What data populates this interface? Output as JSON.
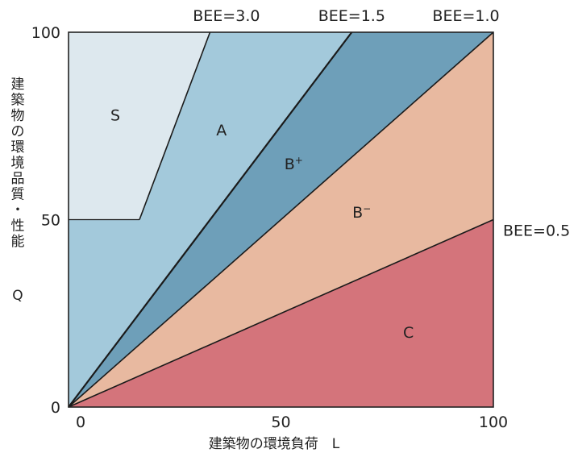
{
  "chart_data": {
    "type": "area",
    "title": "",
    "xlabel": "建築物の環境負荷　L",
    "ylabel_lines": [
      "建築物の環境品質・性能",
      "Q"
    ],
    "xlim": [
      0,
      100
    ],
    "ylim": [
      0,
      100
    ],
    "x_ticks": [
      "0",
      "50",
      "100"
    ],
    "y_ticks": [
      "0",
      "50",
      "100"
    ],
    "grid": false,
    "boundaries": [
      {
        "label": "BEE=3.0",
        "slope": 3.0
      },
      {
        "label": "BEE=1.5",
        "slope": 1.5
      },
      {
        "label": "BEE=1.0",
        "slope": 1.0
      },
      {
        "label": "BEE=0.5",
        "slope": 0.5
      }
    ],
    "s_region_boundary": [
      [
        0,
        50
      ],
      [
        16.7,
        50
      ],
      [
        33.3,
        100
      ]
    ],
    "regions": [
      {
        "name": "S",
        "label": "S",
        "color": "#dde8ee",
        "label_at": [
          11,
          78
        ]
      },
      {
        "name": "A",
        "label": "A",
        "color": "#a3c9db",
        "label_at": [
          36,
          74
        ]
      },
      {
        "name": "B+",
        "label": "B+",
        "color": "#6e9fb9",
        "label_at": [
          53,
          65
        ]
      },
      {
        "name": "B-",
        "label": "B-",
        "color": "#e8b9a0",
        "label_at": [
          69,
          52
        ]
      },
      {
        "name": "C",
        "label": "C",
        "color": "#d4747b",
        "label_at": [
          80,
          20
        ]
      }
    ]
  }
}
